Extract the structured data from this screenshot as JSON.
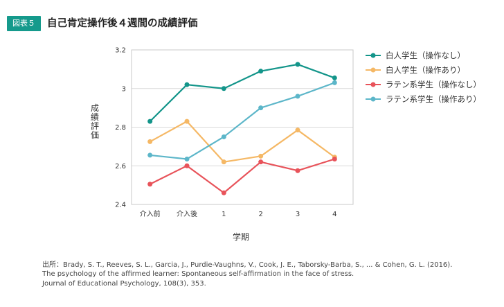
{
  "header": {
    "figure_label": "図表５",
    "title": "自己肯定操作後４週間の成績評価"
  },
  "chart_data": {
    "type": "line",
    "title": "自己肯定操作後４週間の成績評価",
    "xlabel": "学期",
    "ylabel": "成績評価",
    "categories": [
      "介入前",
      "介入後",
      "1",
      "2",
      "3",
      "4"
    ],
    "ylim": [
      2.4,
      3.2
    ],
    "yticks": [
      2.4,
      2.6,
      2.8,
      3,
      3.2
    ],
    "ytick_labels": [
      "2.4",
      "2.6",
      "2.8",
      "3",
      "3.2"
    ],
    "grid": true,
    "legend_position": "right",
    "series": [
      {
        "name": "白人学生（操作なし）",
        "color": "#13958a",
        "values": [
          2.83,
          3.02,
          3.0,
          3.09,
          3.125,
          3.055
        ]
      },
      {
        "name": "白人学生（操作あり）",
        "color": "#f5b865",
        "values": [
          2.725,
          2.83,
          2.62,
          2.65,
          2.785,
          2.645
        ]
      },
      {
        "name": "ラテン系学生（操作なし）",
        "color": "#e8535a",
        "values": [
          2.505,
          2.6,
          2.46,
          2.62,
          2.575,
          2.635
        ]
      },
      {
        "name": "ラテン系学生（操作あり）",
        "color": "#5cb6c9",
        "values": [
          2.655,
          2.635,
          2.75,
          2.9,
          2.96,
          3.03
        ]
      }
    ]
  },
  "source": {
    "lines": [
      "出所：Brady, S. T., Reeves, S. L., Garcia, J., Purdie-Vaughns, V., Cook, J. E., Taborsky-Barba, S., ... & Cohen, G. L. (2016).",
      "The psychology of the affirmed learner: Spontaneous self-affirmation in the face of stress.",
      "Journal of Educational Psychology, 108(3), 353."
    ]
  }
}
